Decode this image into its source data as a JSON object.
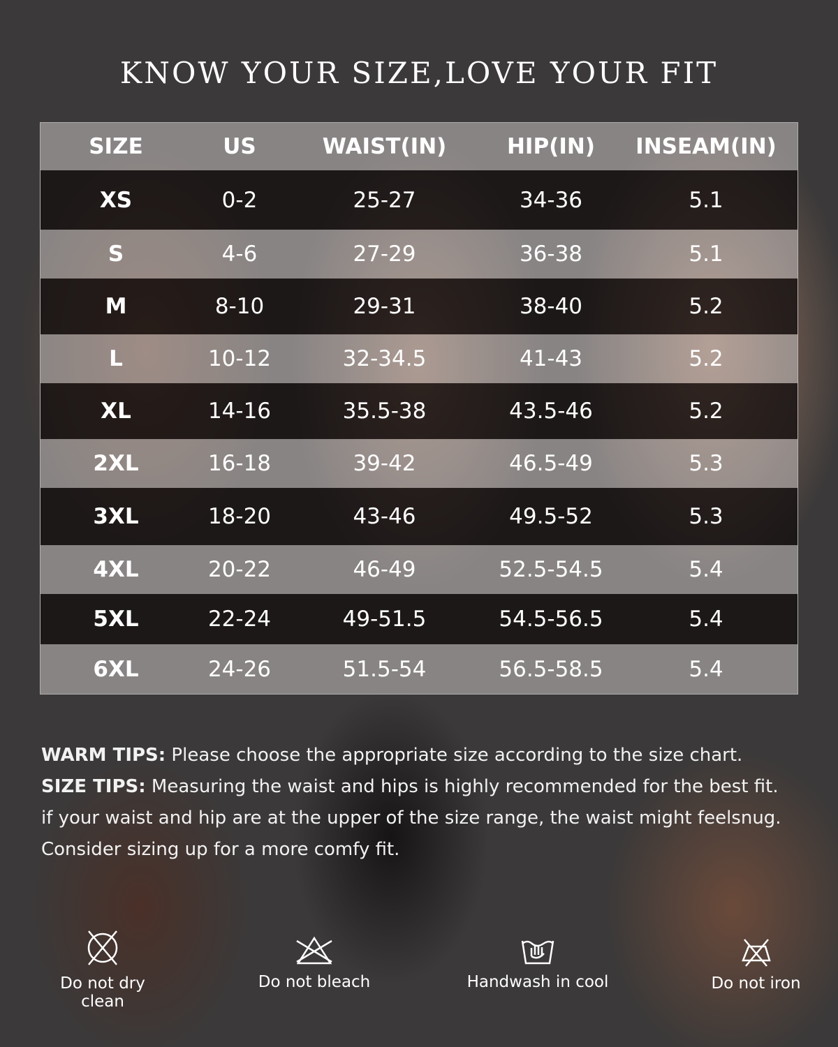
{
  "title": "KNOW YOUR SIZE,LOVE YOUR FIT",
  "table": {
    "headers": [
      "SIZE",
      "US",
      "WAIST(IN)",
      "HIP(IN)",
      "INSEAM(IN)"
    ],
    "rows": [
      [
        "XS",
        "0-2",
        "25-27",
        "34-36",
        "5.1"
      ],
      [
        "S",
        "4-6",
        "27-29",
        "36-38",
        "5.1"
      ],
      [
        "M",
        "8-10",
        "29-31",
        "38-40",
        "5.2"
      ],
      [
        "L",
        "10-12",
        "32-34.5",
        "41-43",
        "5.2"
      ],
      [
        "XL",
        "14-16",
        "35.5-38",
        "43.5-46",
        "5.2"
      ],
      [
        "2XL",
        "16-18",
        "39-42",
        "46.5-49",
        "5.3"
      ],
      [
        "3XL",
        "18-20",
        "43-46",
        "49.5-52",
        "5.3"
      ],
      [
        "4XL",
        "20-22",
        "46-49",
        "52.5-54.5",
        "5.4"
      ],
      [
        "5XL",
        "22-24",
        "49-51.5",
        "54.5-56.5",
        "5.4"
      ],
      [
        "6XL",
        "24-26",
        "51.5-54",
        "56.5-58.5",
        "5.4"
      ]
    ]
  },
  "tips": {
    "warm_label": "WARM TIPS:",
    "warm_text": " Please choose the appropriate size according to the size chart.",
    "size_label": "SIZE TIPS:",
    "size_text": " Measuring the waist and hips is highly recommended for the best fit.",
    "line3": "if your waist and hip are at the upper of the size range, the waist might feelsnug.",
    "line4": "Consider sizing up for a more comfy fit."
  },
  "care": [
    {
      "icon": "no-dry-clean-icon",
      "label": "Do not dry clean"
    },
    {
      "icon": "no-bleach-icon",
      "label": "Do not bleach"
    },
    {
      "icon": "handwash-icon",
      "label": "Handwash in cool"
    },
    {
      "icon": "no-iron-icon",
      "label": "Do not iron"
    }
  ]
}
